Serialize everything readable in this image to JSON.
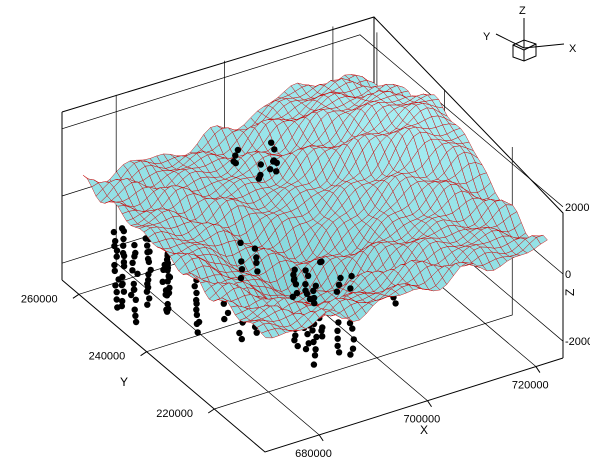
{
  "chart_data": {
    "type": "surface3d",
    "title": "",
    "axes": {
      "x": {
        "label": "X",
        "range": [
          670000,
          725000
        ],
        "ticks": [
          680000,
          700000,
          720000
        ],
        "tick_labels": [
          "680000",
          "700000",
          "720000"
        ]
      },
      "y": {
        "label": "Y",
        "range": [
          205000,
          265000
        ],
        "ticks": [
          220000,
          240000,
          260000
        ],
        "tick_labels": [
          "220000",
          "240000",
          "260000"
        ]
      },
      "z": {
        "label": "Z",
        "range": [
          -2500,
          2500
        ],
        "ticks": [
          -2000,
          0,
          2000
        ],
        "tick_labels": [
          "-2000",
          "0",
          "2000"
        ]
      }
    },
    "orientation_triad": {
      "x": "X",
      "y": "Y",
      "z": "Z"
    },
    "surface": {
      "fill_color": "#7fe6e6",
      "mesh_color": "#cc0000",
      "x_extent": [
        672000,
        724000
      ],
      "y_extent": [
        208000,
        262000
      ],
      "base_elevation": 600,
      "features": [
        {
          "kind": "ridge",
          "x": 712000,
          "y": 255000,
          "height": 900
        },
        {
          "kind": "valley",
          "x": 690000,
          "y": 228000,
          "depth": -1400
        },
        {
          "kind": "peaks",
          "x": 720000,
          "y": 238000,
          "height": 1600
        }
      ]
    },
    "scatter": {
      "color": "#000000",
      "description_clusters": [
        {
          "x": 676000,
          "y": 248000,
          "z_range": [
            -2200,
            200
          ]
        },
        {
          "x": 684000,
          "y": 238000,
          "z_range": [
            -2400,
            100
          ]
        },
        {
          "x": 694000,
          "y": 226000,
          "z_range": [
            -2500,
            0
          ]
        },
        {
          "x": 708000,
          "y": 232000,
          "z_range": [
            -2200,
            400
          ]
        },
        {
          "x": 716000,
          "y": 242000,
          "z_range": [
            -2000,
            800
          ]
        },
        {
          "x": 698000,
          "y": 250000,
          "z_range": [
            -1500,
            1200
          ]
        }
      ]
    },
    "grid": true,
    "legend": "none"
  }
}
